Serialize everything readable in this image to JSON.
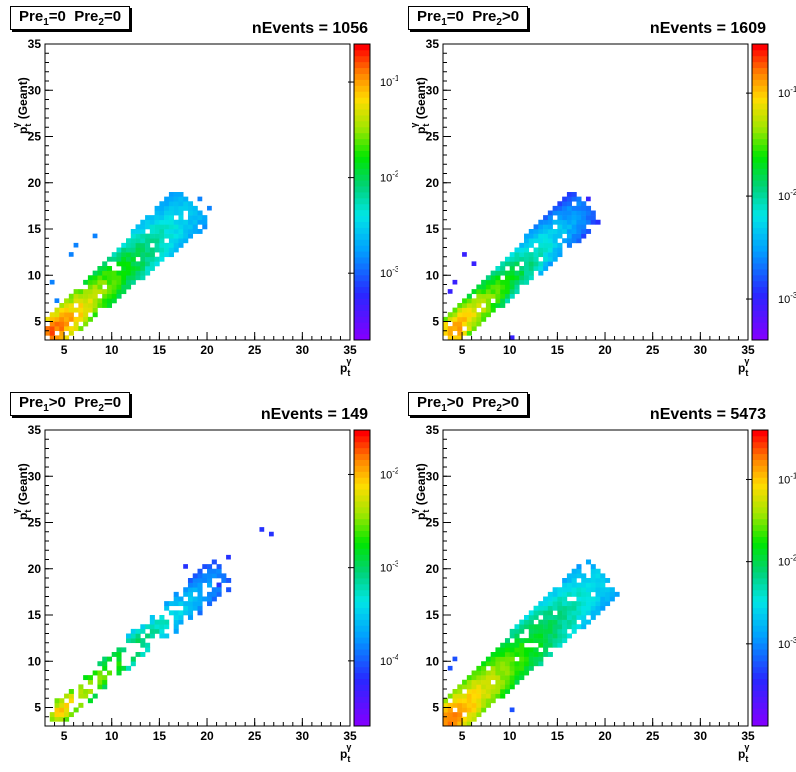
{
  "panels": [
    {
      "label": {
        "p1": "Pre",
        "s1": "1",
        "c1": "=0",
        "p2": "Pre",
        "s2": "2",
        "c2": "=0"
      },
      "events": "nEvents = 1056"
    },
    {
      "label": {
        "p1": "Pre",
        "s1": "1",
        "c1": "=0",
        "p2": "Pre",
        "s2": "2",
        "c2": ">0"
      },
      "events": "nEvents = 1609"
    },
    {
      "label": {
        "p1": "Pre",
        "s1": "1",
        "c1": ">0",
        "p2": "Pre",
        "s2": "2",
        "c2": "=0"
      },
      "events": "nEvents = 149"
    },
    {
      "label": {
        "p1": "Pre",
        "s1": "1",
        "c1": ">0",
        "p2": "Pre",
        "s2": "2",
        "c2": ">0"
      },
      "events": "nEvents = 5473"
    }
  ],
  "axis": {
    "xlabel": "p",
    "xlabel_sub": "t",
    "xlabel_sup": "γ",
    "ylabel_main": "p",
    "ylabel_sub": "t",
    "ylabel_sup": "γ",
    "ylabel_suffix": " (Geant)"
  },
  "chart_data": [
    {
      "type": "heatmap",
      "title": "",
      "xlim": [
        3,
        35
      ],
      "ylim": [
        3,
        35
      ],
      "xticks": [
        5,
        10,
        15,
        20,
        25,
        30,
        35
      ],
      "yticks": [
        5,
        10,
        15,
        20,
        25,
        30,
        35
      ],
      "colorbar": {
        "scale": "log",
        "range": [
          0.0002,
          0.25
        ],
        "ticks": [
          {
            "base": "10",
            "exp": "-1",
            "value": 0.1
          },
          {
            "base": "10",
            "exp": "-2",
            "value": 0.01
          },
          {
            "base": "10",
            "exp": "-3",
            "value": 0.001
          }
        ]
      },
      "ridge": {
        "start": [
          4.0,
          4.0
        ],
        "end": [
          18.0,
          17.0
        ],
        "peak": 0.2,
        "min": 0.001,
        "width": 1.0
      },
      "outliers": [
        [
          8,
          14
        ],
        [
          19,
          18
        ],
        [
          20,
          17
        ],
        [
          6,
          13
        ],
        [
          3.5,
          9
        ],
        [
          4,
          7
        ],
        [
          5.5,
          12
        ]
      ]
    },
    {
      "type": "heatmap",
      "title": "",
      "xlim": [
        3,
        35
      ],
      "ylim": [
        3,
        35
      ],
      "xticks": [
        5,
        10,
        15,
        20,
        25,
        30,
        35
      ],
      "yticks": [
        5,
        10,
        15,
        20,
        25,
        30,
        35
      ],
      "colorbar": {
        "scale": "log",
        "range": [
          0.0004,
          0.3
        ],
        "ticks": [
          {
            "base": "10",
            "exp": "-1",
            "value": 0.1
          },
          {
            "base": "10",
            "exp": "-2",
            "value": 0.01
          },
          {
            "base": "10",
            "exp": "-3",
            "value": 0.001
          }
        ]
      },
      "ridge": {
        "start": [
          4.0,
          4.0
        ],
        "end": [
          17.5,
          17.0
        ],
        "peak": 0.2,
        "min": 0.0007,
        "width": 0.9
      },
      "outliers": [
        [
          3.5,
          8
        ],
        [
          4,
          9
        ],
        [
          5,
          12
        ],
        [
          18,
          18
        ],
        [
          6,
          11
        ],
        [
          10,
          3
        ]
      ]
    },
    {
      "type": "heatmap",
      "title": "",
      "xlim": [
        3,
        35
      ],
      "ylim": [
        3,
        35
      ],
      "xticks": [
        5,
        10,
        15,
        20,
        25,
        30,
        35
      ],
      "yticks": [
        5,
        10,
        15,
        20,
        25,
        30,
        35
      ],
      "colorbar": {
        "scale": "log",
        "range": [
          2e-05,
          0.03
        ],
        "ticks": [
          {
            "base": "10",
            "exp": "-2",
            "value": 0.01
          },
          {
            "base": "10",
            "exp": "-3",
            "value": 0.001
          },
          {
            "base": "10",
            "exp": "-4",
            "value": 0.0001
          }
        ]
      },
      "ridge": {
        "start": [
          4.5,
          4.5
        ],
        "end": [
          21.0,
          19.0
        ],
        "peak": 0.012,
        "min": 5e-05,
        "width": 0.7,
        "sparse": true
      },
      "outliers": [
        [
          25.5,
          24
        ],
        [
          26.5,
          23.5
        ],
        [
          22,
          21
        ],
        [
          17.5,
          20
        ],
        [
          21,
          18
        ]
      ]
    },
    {
      "type": "heatmap",
      "title": "",
      "xlim": [
        3,
        35
      ],
      "ylim": [
        3,
        35
      ],
      "xticks": [
        5,
        10,
        15,
        20,
        25,
        30,
        35
      ],
      "yticks": [
        5,
        10,
        15,
        20,
        25,
        30,
        35
      ],
      "colorbar": {
        "scale": "log",
        "range": [
          0.0001,
          0.4
        ],
        "ticks": [
          {
            "base": "10",
            "exp": "-1",
            "value": 0.1
          },
          {
            "base": "10",
            "exp": "-2",
            "value": 0.01
          },
          {
            "base": "10",
            "exp": "-3",
            "value": 0.001
          }
        ]
      },
      "ridge": {
        "start": [
          3.5,
          3.5
        ],
        "end": [
          19.0,
          18.5
        ],
        "peak": 0.25,
        "min": 0.0004,
        "width": 1.1
      },
      "outliers": [
        [
          3.5,
          9
        ],
        [
          4,
          10
        ],
        [
          10,
          4.5
        ]
      ]
    }
  ]
}
